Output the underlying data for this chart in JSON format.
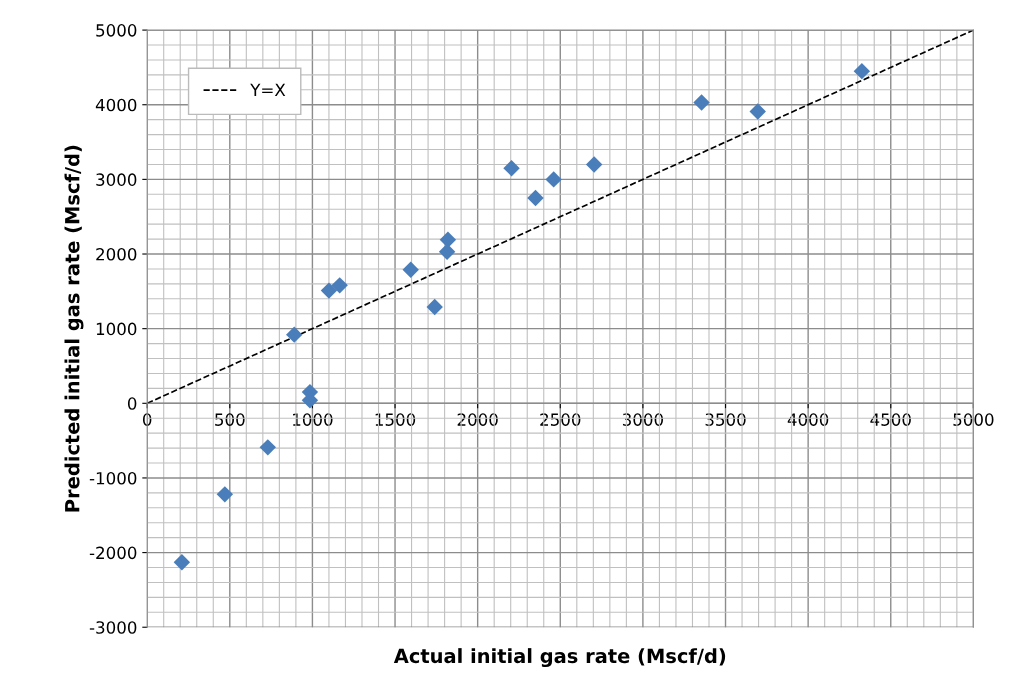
{
  "chart_data": {
    "type": "scatter",
    "xlabel": "Actual initial gas rate (Mscf/d)",
    "ylabel": "Predicted initial gas rate (Mscf/d)",
    "xlim": [
      0,
      5000
    ],
    "ylim": [
      -3000,
      5000
    ],
    "xticks": [
      0,
      500,
      1000,
      1500,
      2000,
      2500,
      3000,
      3500,
      4000,
      4500,
      5000
    ],
    "yticks": [
      -3000,
      -2000,
      -1000,
      0,
      1000,
      2000,
      3000,
      4000,
      5000
    ],
    "grid": true,
    "legend": "top left",
    "marker": "diamond",
    "series": [
      {
        "color": "#4a7ebb",
        "x": [
          210,
          470,
          730,
          985,
          985,
          890,
          1100,
          1165,
          1595,
          1740,
          1820,
          1815,
          2205,
          2350,
          2460,
          2705,
          3355,
          3695,
          4325
        ],
        "values": [
          -2130,
          -1220,
          -590,
          150,
          40,
          920,
          1510,
          1580,
          1790,
          1290,
          2190,
          2030,
          3150,
          2750,
          3000,
          3200,
          4030,
          3910,
          4450
        ]
      },
      {
        "type": "line",
        "name": "Y=X",
        "color": "#000000",
        "line_style": "dashed",
        "marker": "none",
        "x": [
          0,
          5000
        ],
        "values": [
          0,
          5000
        ]
      }
    ]
  }
}
